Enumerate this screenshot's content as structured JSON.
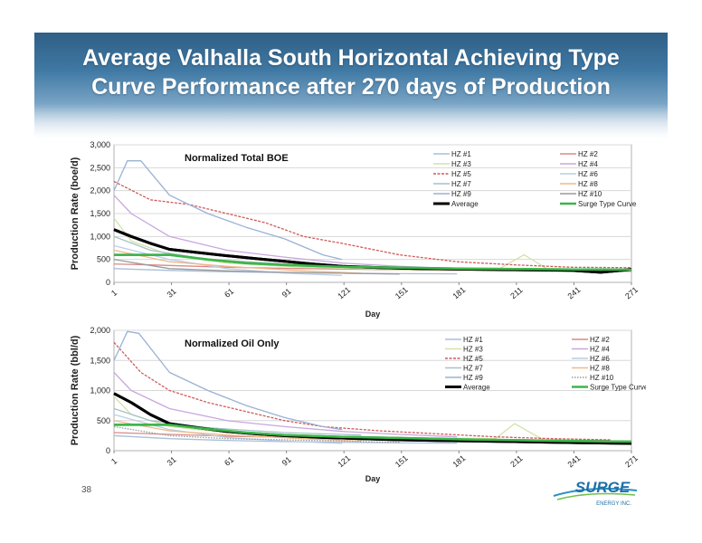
{
  "slide": {
    "title_line1": "Average Valhalla South Horizontal Achieving Type",
    "title_line2": "Curve Performance after 270 days of Production",
    "page_number": "38",
    "logo_text": "SURGE",
    "logo_subtext": "ENERGY INC."
  },
  "colors": {
    "average": "#000000",
    "type_curve": "#3cb54a",
    "grid": "#d8d8d8"
  },
  "chart_data": [
    {
      "type": "line",
      "title": "Normalized Total BOE",
      "xlabel": "Day",
      "ylabel": "Production Rate (boe/d)",
      "xticks": [
        "1",
        "31",
        "61",
        "91",
        "121",
        "151",
        "181",
        "211",
        "241",
        "271"
      ],
      "yticks": [
        "0",
        "500",
        "1,000",
        "1,500",
        "2,000",
        "2,500",
        "3,000"
      ],
      "ylim": [
        0,
        3000
      ],
      "xlim": [
        1,
        271
      ],
      "grid": true,
      "legend_placement": "top-right",
      "series": [
        {
          "name": "HZ #1",
          "color": "#a9bfd9",
          "style": "solid",
          "points": [
            [
              1,
              300
            ],
            [
              30,
              260
            ],
            [
              60,
              230
            ],
            [
              90,
              210
            ],
            [
              120,
              200
            ],
            [
              150,
              190
            ],
            [
              180,
              185
            ]
          ]
        },
        {
          "name": "HZ #2",
          "color": "#d98a8a",
          "style": "solid",
          "points": [
            [
              1,
              400
            ],
            [
              20,
              380
            ],
            [
              60,
              330
            ],
            [
              100,
              300
            ],
            [
              140,
              280
            ],
            [
              180,
              260
            ],
            [
              220,
              250
            ],
            [
              271,
              240
            ]
          ]
        },
        {
          "name": "HZ #3",
          "color": "#d3e2a8",
          "style": "solid",
          "points": [
            [
              1,
              1400
            ],
            [
              10,
              900
            ],
            [
              30,
              600
            ],
            [
              60,
              420
            ],
            [
              100,
              330
            ],
            [
              150,
              280
            ],
            [
              200,
              250
            ],
            [
              215,
              600
            ],
            [
              230,
              220
            ]
          ]
        },
        {
          "name": "HZ #4",
          "color": "#c8a7dd",
          "style": "solid",
          "points": [
            [
              1,
              1900
            ],
            [
              10,
              1500
            ],
            [
              30,
              1000
            ],
            [
              60,
              700
            ],
            [
              90,
              550
            ],
            [
              120,
              420
            ],
            [
              150,
              350
            ],
            [
              180,
              300
            ]
          ]
        },
        {
          "name": "HZ #5",
          "color": "#d05a5a",
          "style": "dashed",
          "points": [
            [
              1,
              2200
            ],
            [
              20,
              1800
            ],
            [
              40,
              1700
            ],
            [
              60,
              1500
            ],
            [
              80,
              1300
            ],
            [
              100,
              1000
            ],
            [
              120,
              850
            ],
            [
              150,
              600
            ],
            [
              180,
              450
            ],
            [
              210,
              380
            ],
            [
              240,
              330
            ],
            [
              271,
              320
            ]
          ]
        },
        {
          "name": "HZ #6",
          "color": "#b8cde6",
          "style": "solid",
          "points": [
            [
              1,
              800
            ],
            [
              30,
              500
            ],
            [
              60,
              300
            ],
            [
              90,
              200
            ],
            [
              120,
              150
            ]
          ]
        },
        {
          "name": "HZ #7",
          "color": "#a4c2c7",
          "style": "solid",
          "points": [
            [
              1,
              1000
            ],
            [
              20,
              700
            ],
            [
              50,
              500
            ],
            [
              90,
              400
            ],
            [
              130,
              350
            ]
          ]
        },
        {
          "name": "HZ #8",
          "color": "#f0b98a",
          "style": "solid",
          "points": [
            [
              1,
              700
            ],
            [
              30,
              450
            ],
            [
              60,
              350
            ],
            [
              100,
              250
            ],
            [
              130,
              200
            ]
          ]
        },
        {
          "name": "HZ #9",
          "color": "#9ab1d6",
          "style": "solid",
          "points": [
            [
              1,
              2000
            ],
            [
              8,
              2650
            ],
            [
              15,
              2650
            ],
            [
              30,
              1900
            ],
            [
              50,
              1500
            ],
            [
              70,
              1200
            ],
            [
              90,
              950
            ],
            [
              110,
              600
            ],
            [
              120,
              500
            ]
          ]
        },
        {
          "name": "HZ #10",
          "color": "#9a9a9a",
          "style": "solid",
          "points": [
            [
              1,
              500
            ],
            [
              30,
              300
            ],
            [
              60,
              250
            ],
            [
              90,
              220
            ],
            [
              120,
              200
            ],
            [
              150,
              180
            ]
          ]
        },
        {
          "name": "Average",
          "color": "#000000",
          "style": "bold",
          "points": [
            [
              1,
              1150
            ],
            [
              10,
              1000
            ],
            [
              20,
              850
            ],
            [
              30,
              720
            ],
            [
              45,
              650
            ],
            [
              60,
              580
            ],
            [
              75,
              520
            ],
            [
              90,
              460
            ],
            [
              105,
              400
            ],
            [
              120,
              350
            ],
            [
              140,
              320
            ],
            [
              160,
              300
            ],
            [
              180,
              290
            ],
            [
              200,
              280
            ],
            [
              220,
              270
            ],
            [
              240,
              260
            ],
            [
              255,
              220
            ],
            [
              271,
              280
            ]
          ]
        },
        {
          "name": "Surge Type Curve",
          "color": "#3cb54a",
          "style": "solid",
          "points": [
            [
              1,
              600
            ],
            [
              30,
              600
            ],
            [
              50,
              500
            ],
            [
              70,
              420
            ],
            [
              90,
              380
            ],
            [
              120,
              340
            ],
            [
              150,
              320
            ],
            [
              180,
              300
            ],
            [
              210,
              290
            ],
            [
              240,
              280
            ],
            [
              271,
              275
            ]
          ]
        }
      ]
    },
    {
      "type": "line",
      "title": "Normalized Oil Only",
      "xlabel": "Day",
      "ylabel": "Production Rate (bbl/d)",
      "xticks": [
        "1",
        "31",
        "61",
        "91",
        "121",
        "151",
        "181",
        "211",
        "241",
        "271"
      ],
      "yticks": [
        "0",
        "500",
        "1,000",
        "1,500",
        "2,000"
      ],
      "ylim": [
        0,
        2000
      ],
      "xlim": [
        1,
        271
      ],
      "grid": true,
      "legend_placement": "top-right",
      "series": [
        {
          "name": "HZ #1",
          "color": "#a9bfd9",
          "style": "solid",
          "points": [
            [
              1,
              250
            ],
            [
              30,
              200
            ],
            [
              60,
              170
            ],
            [
              90,
              150
            ],
            [
              120,
              140
            ],
            [
              150,
              130
            ],
            [
              180,
              125
            ]
          ]
        },
        {
          "name": "HZ #2",
          "color": "#d98a8a",
          "style": "solid",
          "points": [
            [
              1,
              300
            ],
            [
              30,
              270
            ],
            [
              60,
              240
            ],
            [
              100,
              220
            ],
            [
              140,
              200
            ],
            [
              180,
              190
            ],
            [
              220,
              180
            ],
            [
              260,
              170
            ]
          ]
        },
        {
          "name": "HZ #3",
          "color": "#d3e2a8",
          "style": "solid",
          "points": [
            [
              1,
              900
            ],
            [
              10,
              600
            ],
            [
              30,
              400
            ],
            [
              60,
              300
            ],
            [
              100,
              250
            ],
            [
              150,
              220
            ],
            [
              200,
              200
            ],
            [
              210,
              450
            ],
            [
              225,
              180
            ]
          ]
        },
        {
          "name": "HZ #4",
          "color": "#c8a7dd",
          "style": "solid",
          "points": [
            [
              1,
              1300
            ],
            [
              10,
              1000
            ],
            [
              30,
              700
            ],
            [
              60,
              500
            ],
            [
              90,
              400
            ],
            [
              120,
              320
            ],
            [
              150,
              270
            ],
            [
              180,
              230
            ]
          ]
        },
        {
          "name": "HZ #5",
          "color": "#d05a5a",
          "style": "dashed",
          "points": [
            [
              1,
              1800
            ],
            [
              15,
              1300
            ],
            [
              30,
              1000
            ],
            [
              50,
              800
            ],
            [
              70,
              650
            ],
            [
              90,
              500
            ],
            [
              110,
              400
            ],
            [
              140,
              330
            ],
            [
              170,
              280
            ],
            [
              200,
              230
            ],
            [
              230,
              200
            ],
            [
              260,
              180
            ]
          ]
        },
        {
          "name": "HZ #6",
          "color": "#b8cde6",
          "style": "solid",
          "points": [
            [
              1,
              600
            ],
            [
              30,
              350
            ],
            [
              60,
              220
            ],
            [
              90,
              160
            ],
            [
              120,
              120
            ]
          ]
        },
        {
          "name": "HZ #7",
          "color": "#a4c2c7",
          "style": "solid",
          "points": [
            [
              1,
              700
            ],
            [
              20,
              500
            ],
            [
              50,
              380
            ],
            [
              90,
              300
            ],
            [
              130,
              260
            ]
          ]
        },
        {
          "name": "HZ #8",
          "color": "#f0b98a",
          "style": "solid",
          "points": [
            [
              1,
              500
            ],
            [
              30,
              330
            ],
            [
              60,
              260
            ],
            [
              100,
              200
            ],
            [
              130,
              160
            ]
          ]
        },
        {
          "name": "HZ #9",
          "color": "#9ab1d6",
          "style": "solid",
          "points": [
            [
              1,
              1500
            ],
            [
              8,
              1980
            ],
            [
              14,
              1950
            ],
            [
              30,
              1300
            ],
            [
              50,
              1000
            ],
            [
              70,
              750
            ],
            [
              90,
              550
            ],
            [
              110,
              400
            ],
            [
              120,
              350
            ]
          ]
        },
        {
          "name": "HZ #10",
          "color": "#9a9a9a",
          "style": "dotted",
          "points": [
            [
              1,
              400
            ],
            [
              30,
              250
            ],
            [
              60,
              200
            ],
            [
              90,
              180
            ],
            [
              120,
              160
            ],
            [
              150,
              140
            ]
          ]
        },
        {
          "name": "Average",
          "color": "#000000",
          "style": "bold",
          "points": [
            [
              1,
              950
            ],
            [
              10,
              800
            ],
            [
              20,
              600
            ],
            [
              30,
              450
            ],
            [
              45,
              380
            ],
            [
              60,
              320
            ],
            [
              75,
              280
            ],
            [
              90,
              250
            ],
            [
              110,
              220
            ],
            [
              130,
              200
            ],
            [
              150,
              180
            ],
            [
              170,
              170
            ],
            [
              190,
              160
            ],
            [
              210,
              150
            ],
            [
              230,
              140
            ],
            [
              250,
              130
            ],
            [
              271,
              120
            ]
          ]
        },
        {
          "name": "Surge Type Curve",
          "color": "#3cb54a",
          "style": "solid",
          "points": [
            [
              1,
              430
            ],
            [
              30,
              430
            ],
            [
              50,
              360
            ],
            [
              70,
              300
            ],
            [
              90,
              260
            ],
            [
              120,
              230
            ],
            [
              150,
              210
            ],
            [
              180,
              190
            ],
            [
              210,
              175
            ],
            [
              240,
              160
            ],
            [
              271,
              150
            ]
          ]
        }
      ]
    }
  ]
}
